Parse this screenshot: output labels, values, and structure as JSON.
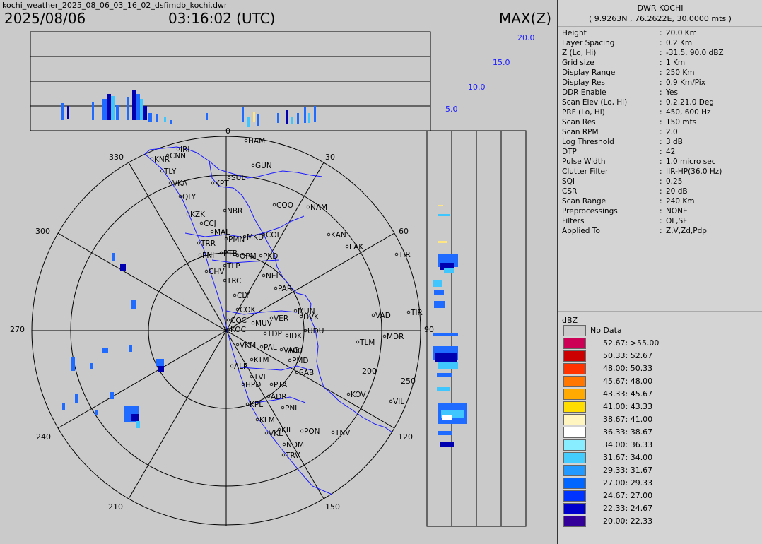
{
  "header": {
    "filename": "kochi_weather_2025_08_06_03_16_02_dsfimdb_kochi.dwr",
    "date": "2025/08/06",
    "time": "03:16:02 (UTC)",
    "product": "MAX(Z)"
  },
  "station": {
    "name": "DWR KOCHI",
    "coords": "( 9.9263N , 76.2622E, 30.0000 mts )"
  },
  "params": [
    {
      "key": "Height",
      "value": "20.0 Km"
    },
    {
      "key": "Layer Spacing",
      "value": "0.2 Km"
    },
    {
      "key": "Z (Lo, Hi)",
      "value": "-31.5, 90.0 dBZ"
    },
    {
      "key": "Grid size",
      "value": "1 Km"
    },
    {
      "key": "Display Range",
      "value": "250 Km"
    },
    {
      "key": "Display Res",
      "value": "0.9 Km/Pix"
    },
    {
      "key": "DDR Enable",
      "value": "Yes"
    },
    {
      "key": "Scan Elev (Lo, Hi)",
      "value": "0.2,21.0 Deg"
    },
    {
      "key": "PRF (Lo, Hi)",
      "value": "450, 600 Hz"
    },
    {
      "key": "Scan Res",
      "value": "150 mts"
    },
    {
      "key": "Scan RPM",
      "value": "2.0"
    },
    {
      "key": "Log Threshold",
      "value": "3 dB"
    },
    {
      "key": "DTP",
      "value": "42"
    },
    {
      "key": "Pulse Width",
      "value": "1.0 micro sec"
    },
    {
      "key": "Clutter Filter",
      "value": "IIR-HP(36.0 Hz)"
    },
    {
      "key": "SQI",
      "value": "0.25"
    },
    {
      "key": "CSR",
      "value": "20 dB"
    },
    {
      "key": "Scan Range",
      "value": "240 Km"
    },
    {
      "key": "Preprocessings",
      "value": "NONE"
    },
    {
      "key": "Filters",
      "value": "OL,SF"
    },
    {
      "key": "Applied To",
      "value": "Z,V,Zd,Pdp"
    }
  ],
  "legend": {
    "title": "dBZ",
    "items": [
      {
        "label": "No Data",
        "color": "#cacaca"
      },
      {
        "label": "52.67: >55.00",
        "color": "#cc0055"
      },
      {
        "label": "50.33: 52.67",
        "color": "#cc0000"
      },
      {
        "label": "48.00: 50.33",
        "color": "#ff3300"
      },
      {
        "label": "45.67: 48.00",
        "color": "#ff7700"
      },
      {
        "label": "43.33: 45.67",
        "color": "#ffaa00"
      },
      {
        "label": "41.00: 43.33",
        "color": "#ffdd00"
      },
      {
        "label": "38.67: 41.00",
        "color": "#fff5c0"
      },
      {
        "label": "36.33: 38.67",
        "color": "#ffffff"
      },
      {
        "label": "34.00: 36.33",
        "color": "#88eeff"
      },
      {
        "label": "31.67: 34.00",
        "color": "#44ccff"
      },
      {
        "label": "29.33: 31.67",
        "color": "#2299ff"
      },
      {
        "label": "27.00: 29.33",
        "color": "#0066ff"
      },
      {
        "label": "24.67: 27.00",
        "color": "#0033ff"
      },
      {
        "label": "22.33: 24.67",
        "color": "#0000cc"
      },
      {
        "label": "20.00: 22.33",
        "color": "#330099"
      }
    ]
  },
  "ppi": {
    "bearing_labels": [
      "0",
      "30",
      "60",
      "90",
      "120",
      "150",
      "210",
      "240",
      "270",
      "300",
      "330"
    ],
    "range_labels": [
      "100",
      "200",
      "250"
    ],
    "height_labels": [
      "20.0",
      "15.0",
      "10.0",
      "5.0"
    ],
    "cities": [
      "HAM",
      "IRI",
      "CNN",
      "KNR",
      "TLY",
      "GUN",
      "SUL",
      "KPT",
      "VKA",
      "QLY",
      "COO",
      "NAM",
      "KZK",
      "NBR",
      "CCJ",
      "MAL",
      "COL",
      "MKD",
      "KAN",
      "LAK",
      "TRR",
      "PMN",
      "PNI",
      "PTB",
      "OPM",
      "PKD",
      "TIR",
      "CHV",
      "TLP",
      "NEL",
      "TRC",
      "PAR",
      "CLY",
      "COK",
      "MUN",
      "MUV",
      "TIR",
      "VAD",
      "COC",
      "KOC",
      "VER",
      "DVK",
      "UDU",
      "TDP",
      "IDK",
      "MDR",
      "TLM",
      "VKM",
      "PAL",
      "VAG",
      "PMD",
      "KTM",
      "ALP",
      "SAB",
      "TVL",
      "PTA",
      "HPD",
      "ADR",
      "KOV",
      "KPL",
      "PNL",
      "VIL",
      "KLM",
      "VKL",
      "KIL",
      "PON",
      "TNV",
      "NDM",
      "TRV"
    ],
    "series_colors": {
      "dark": "#0000b0",
      "mid": "#1f6bff",
      "light": "#3fc6ff",
      "white": "#ffffff",
      "yellow": "#ffe680"
    }
  }
}
